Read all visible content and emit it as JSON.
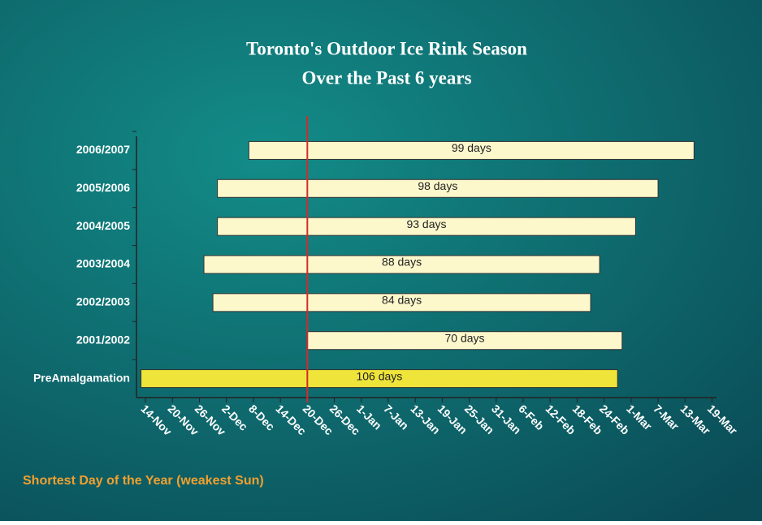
{
  "chart_data": {
    "type": "floating-bar",
    "title": [
      "Toronto's Outdoor Ice Rink Season",
      "Over the Past 6 years"
    ],
    "categories": [
      "2006/2007",
      "2005/2006",
      "2004/2005",
      "2003/2004",
      "2002/2003",
      "2001/2002",
      "PreAmalgamation"
    ],
    "start": [
      23,
      16,
      16,
      13,
      15,
      36,
      -1
    ],
    "values": [
      99,
      98,
      93,
      88,
      84,
      70,
      106
    ],
    "value_labels": [
      "99 days",
      "98 days",
      "93 days",
      "88 days",
      "84 days",
      "70 days",
      "106 days"
    ],
    "colors": [
      "#fdf8cc",
      "#fdf8cc",
      "#fdf8cc",
      "#fdf8cc",
      "#fdf8cc",
      "#fdf8cc",
      "#efe43a"
    ],
    "xlim": [
      -2,
      127
    ],
    "xticks": [
      {
        "value": 0,
        "label": "14-Nov"
      },
      {
        "value": 6,
        "label": "20-Nov"
      },
      {
        "value": 12,
        "label": "26-Nov"
      },
      {
        "value": 18,
        "label": "2-Dec"
      },
      {
        "value": 24,
        "label": "8-Dec"
      },
      {
        "value": 30,
        "label": "14-Dec"
      },
      {
        "value": 36,
        "label": "20-Dec"
      },
      {
        "value": 42,
        "label": "26-Dec"
      },
      {
        "value": 48,
        "label": "1-Jan"
      },
      {
        "value": 54,
        "label": "7-Jan"
      },
      {
        "value": 60,
        "label": "13-Jan"
      },
      {
        "value": 66,
        "label": "19-Jan"
      },
      {
        "value": 72,
        "label": "25-Jan"
      },
      {
        "value": 78,
        "label": "31-Jan"
      },
      {
        "value": 84,
        "label": "6-Feb"
      },
      {
        "value": 90,
        "label": "12-Feb"
      },
      {
        "value": 96,
        "label": "18-Feb"
      },
      {
        "value": 102,
        "label": "24-Feb"
      },
      {
        "value": 108,
        "label": "1-Mar"
      },
      {
        "value": 114,
        "label": "7-Mar"
      },
      {
        "value": 120,
        "label": "13-Mar"
      },
      {
        "value": 126,
        "label": "19-Mar"
      }
    ],
    "marker": {
      "x": 36,
      "label": "Shortest Day of the Year (weakest Sun)",
      "color": "#d42a2a"
    }
  }
}
